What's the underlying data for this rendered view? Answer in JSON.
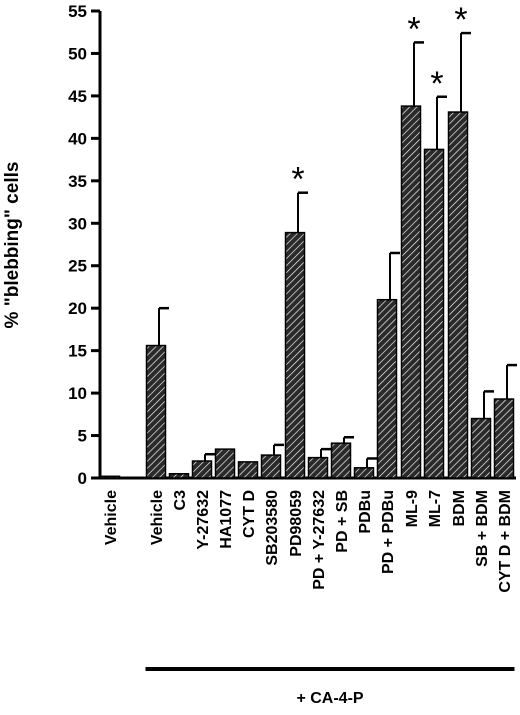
{
  "chart_data": {
    "type": "bar",
    "title": "",
    "xlabel": "",
    "ylabel": "% \"blebbing\" cells",
    "ylim": [
      0,
      55
    ],
    "yticks": [
      0,
      5,
      10,
      15,
      20,
      25,
      30,
      35,
      40,
      45,
      50,
      55
    ],
    "grid": false,
    "legend": "none",
    "bar_fill": "hatched",
    "categories": [
      "Vehicle",
      "Vehicle",
      "C3",
      "Y-27632",
      "HA1077",
      "CYT D",
      "SB203580",
      "PD98059",
      "PD + Y-27632",
      "PD + SB",
      "PDBu",
      "PD + PDBu",
      "ML-9",
      "ML-7",
      "BDM",
      "SB + BDM",
      "CYT D + BDM"
    ],
    "values": [
      0.2,
      15.6,
      0.5,
      2.0,
      3.4,
      1.9,
      2.7,
      28.9,
      2.4,
      4.1,
      1.2,
      21.0,
      43.8,
      38.7,
      43.1,
      7.0,
      9.3
    ],
    "errors": [
      0,
      4.4,
      0,
      0.8,
      0,
      0,
      1.2,
      4.7,
      1.0,
      0.7,
      1.1,
      5.5,
      7.5,
      6.2,
      9.3,
      3.2,
      4.0
    ],
    "significant": [
      false,
      false,
      false,
      false,
      false,
      false,
      false,
      true,
      false,
      false,
      false,
      false,
      true,
      true,
      true,
      false,
      false
    ],
    "significance_marker": "*",
    "group": {
      "label": "+ CA-4-P",
      "start_category": 1,
      "end_category": 16
    }
  }
}
